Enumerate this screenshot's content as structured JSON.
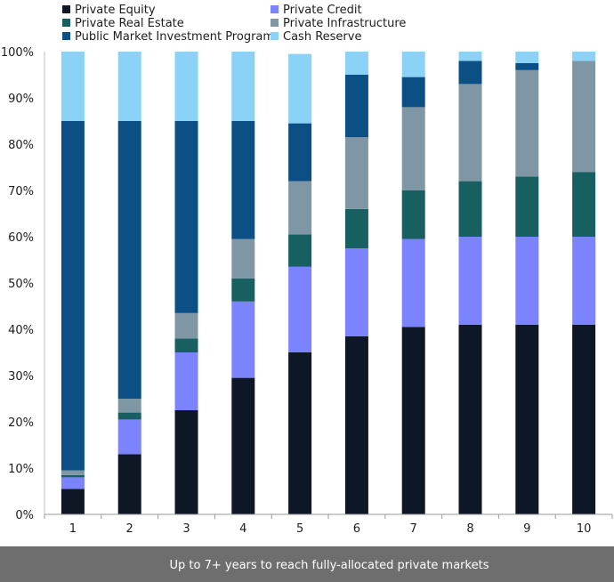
{
  "chart_data": {
    "type": "bar",
    "stacked": true,
    "title": "",
    "xlabel": "Up to 7+ years to reach fully-allocated private markets",
    "ylabel": "",
    "ylim": [
      0,
      100
    ],
    "y_ticks": [
      "0%",
      "10%",
      "20%",
      "30%",
      "40%",
      "50%",
      "60%",
      "70%",
      "80%",
      "90%",
      "100%"
    ],
    "categories": [
      "1",
      "2",
      "3",
      "4",
      "5",
      "6",
      "7",
      "8",
      "9",
      "10"
    ],
    "legend_position": "top-left",
    "grid": false,
    "series": [
      {
        "name": "Private Equity",
        "color": "#0d1726",
        "values": [
          5.5,
          13,
          22.5,
          29.5,
          35,
          38.5,
          40.5,
          41,
          41,
          41
        ]
      },
      {
        "name": "Private Credit",
        "color": "#7b83ff",
        "values": [
          2.5,
          7.5,
          12.5,
          16.5,
          18.5,
          19,
          19,
          19,
          19,
          19
        ]
      },
      {
        "name": "Private Real Estate",
        "color": "#175f61",
        "values": [
          0.5,
          1.5,
          3,
          5,
          7,
          8.5,
          10.5,
          12,
          13,
          14
        ]
      },
      {
        "name": "Private Infrastructure",
        "color": "#7f97a4",
        "values": [
          1,
          3,
          5.5,
          8.5,
          11.5,
          15.5,
          18,
          21,
          23,
          24
        ]
      },
      {
        "name": "Public Market Investment Program",
        "color": "#0b4f85",
        "values": [
          75.5,
          60,
          41.5,
          25.5,
          12.5,
          13.5,
          6.5,
          5,
          1.5,
          0
        ]
      },
      {
        "name": "Cash Reserve",
        "color": "#8ad3f6",
        "values": [
          15,
          15,
          15,
          15,
          15,
          5,
          5.5,
          2,
          2.5,
          2
        ]
      }
    ]
  }
}
